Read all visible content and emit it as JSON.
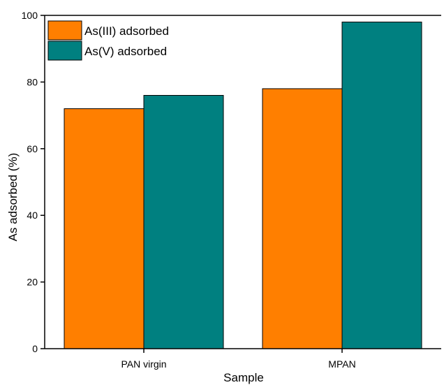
{
  "chart_data": {
    "type": "bar",
    "title": "",
    "xlabel": "Sample",
    "ylabel": "As adsorbed (%)",
    "categories": [
      "PAN virgin",
      "MPAN"
    ],
    "series": [
      {
        "name": "As(III) adsorbed",
        "values": [
          72,
          78
        ],
        "color": "#ff7f00"
      },
      {
        "name": "As(V) adsorbed",
        "values": [
          76,
          98
        ],
        "color": "#008080"
      }
    ],
    "ylim": [
      0,
      100
    ],
    "yticks": [
      0,
      20,
      40,
      60,
      80,
      100
    ],
    "grid": false,
    "legend_position": "top-left"
  }
}
